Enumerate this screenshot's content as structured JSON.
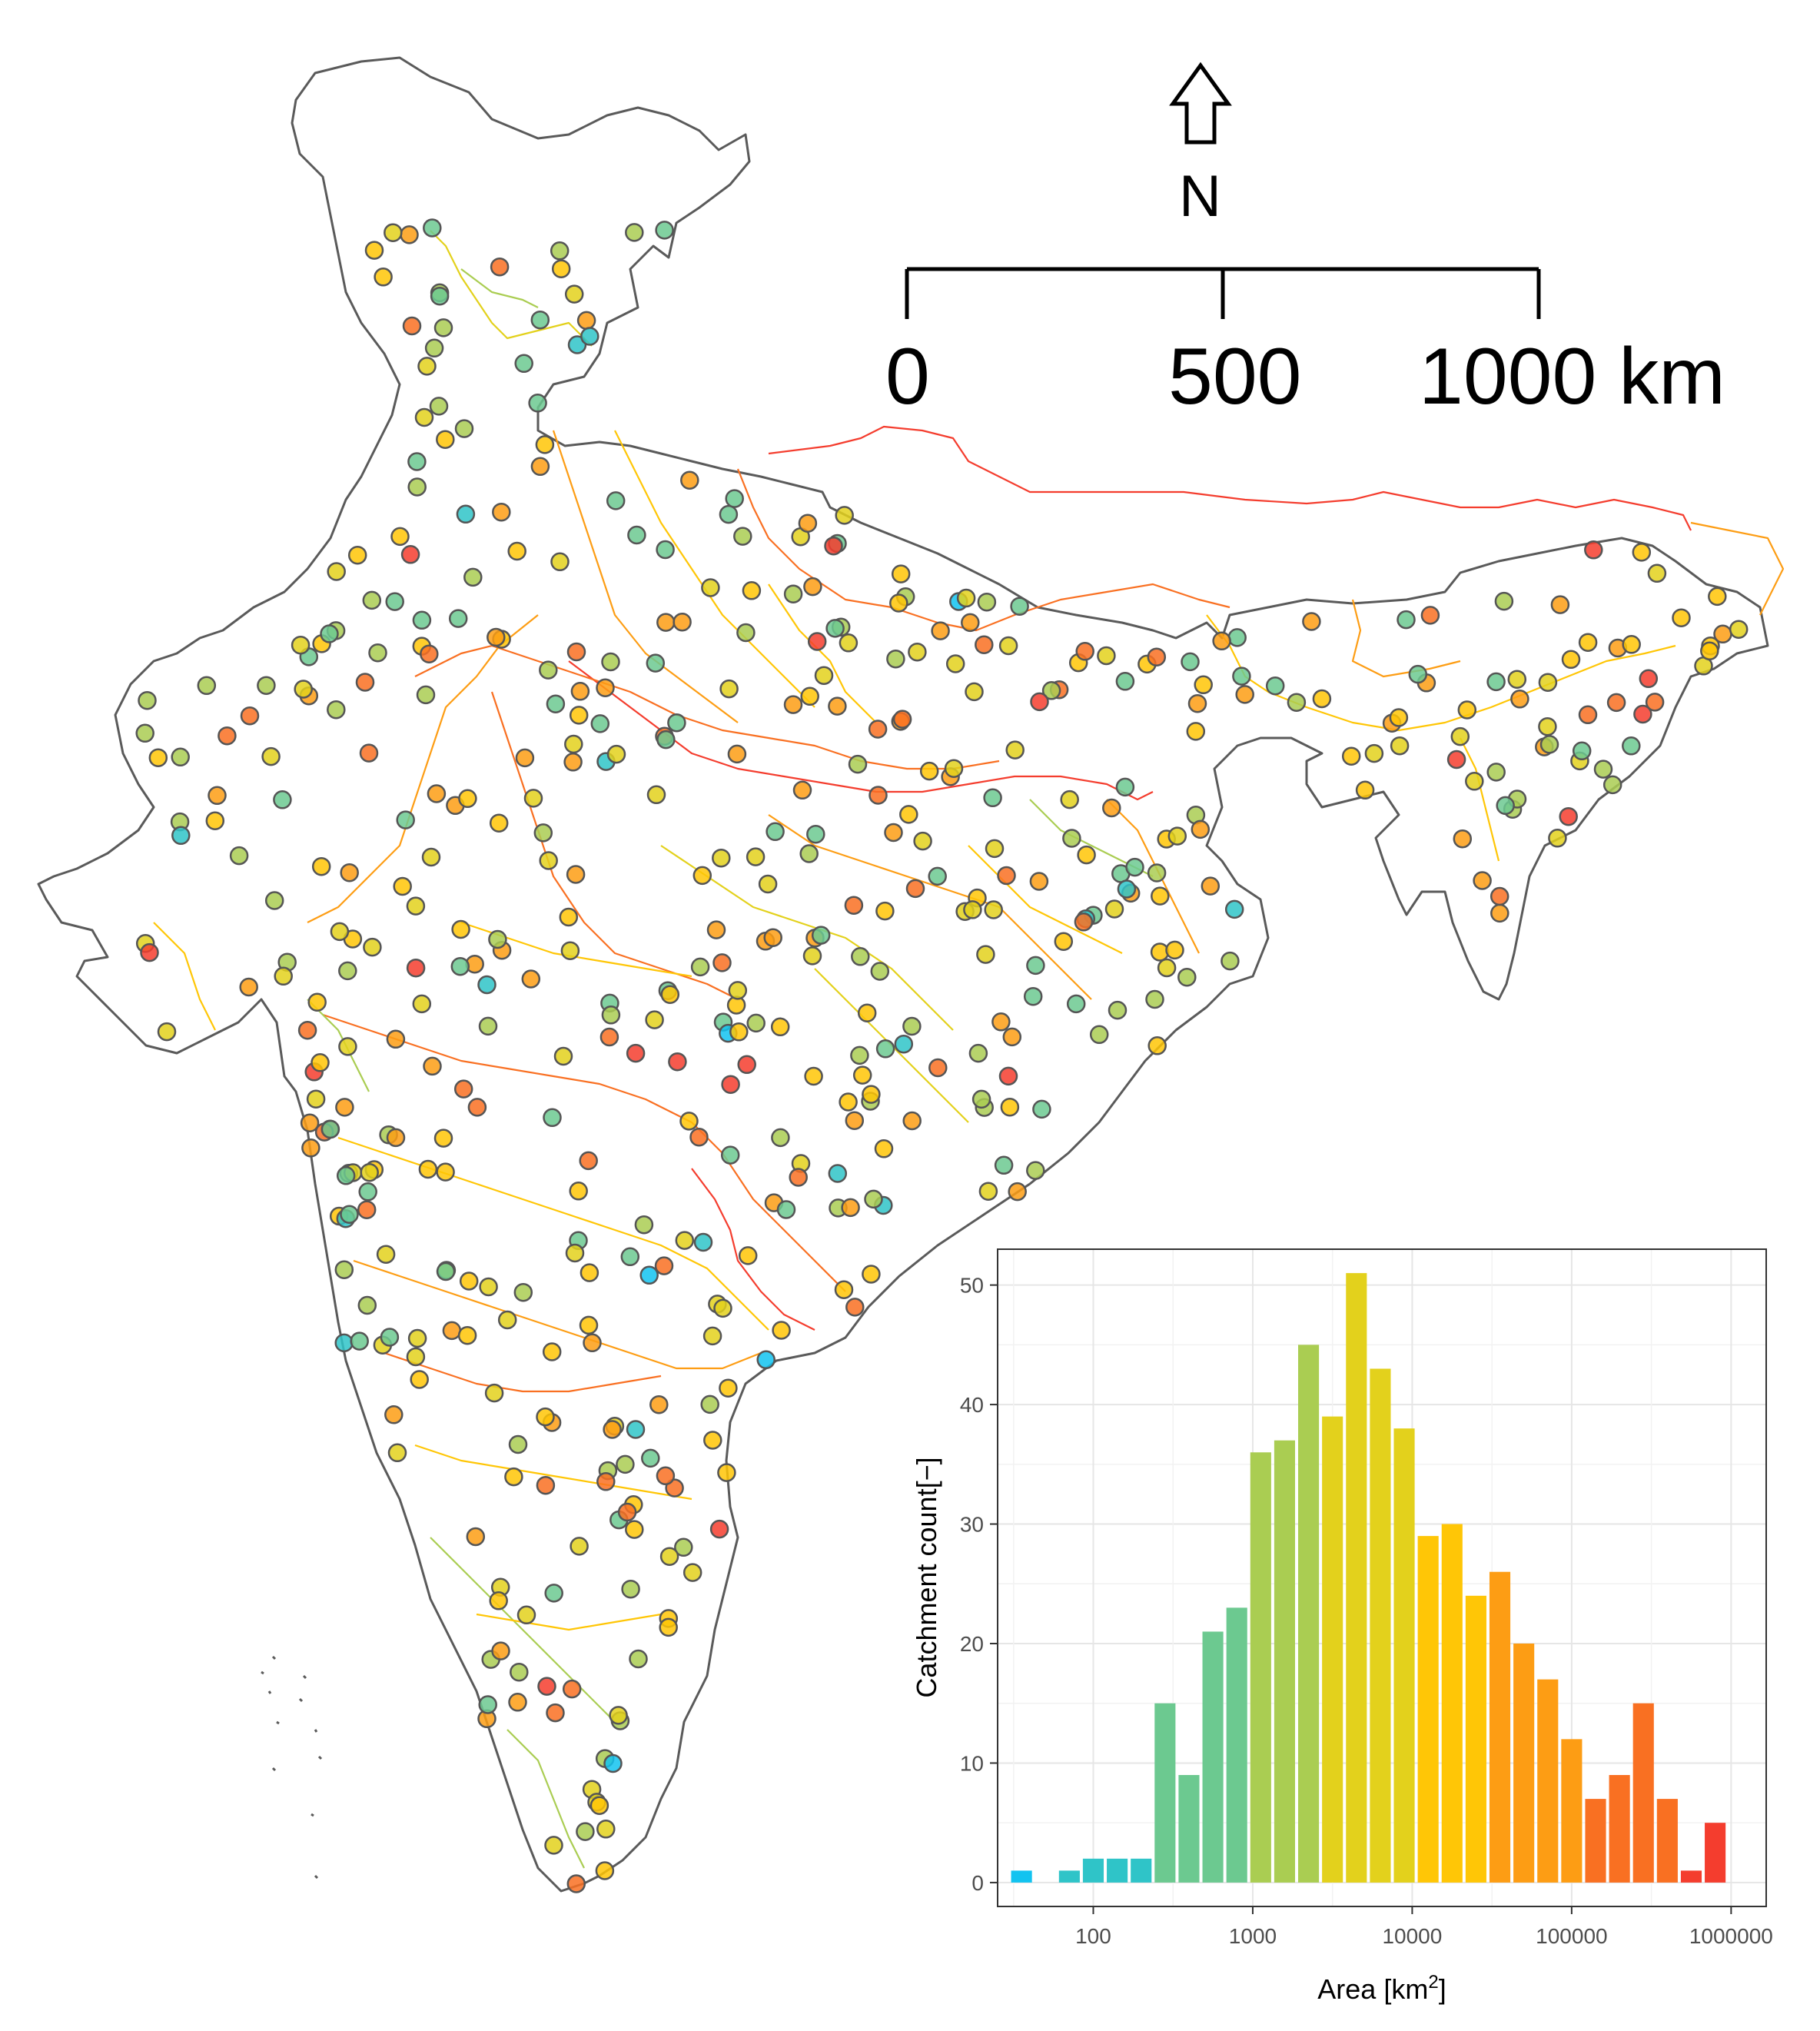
{
  "north_arrow": {
    "label": "N"
  },
  "scale_bar": {
    "labels": [
      "0",
      "500",
      "1000 km"
    ],
    "ticks_km": [
      0,
      500,
      1000
    ]
  },
  "colors": {
    "outline": "#5a5a5a",
    "scale": [
      "#12c3f0",
      "#2fc4c8",
      "#6cc990",
      "#aacd52",
      "#e3d11c",
      "#ffc606",
      "#fd9d14",
      "#f97022",
      "#f43d2e"
    ]
  },
  "map_points_note_free": true,
  "chart_data": {
    "type": "bar",
    "xlabel": "Area [km",
    "xlabel_sup": "2",
    "xlabel_tail": "]",
    "ylabel": "Catchment count[−]",
    "x_scale": "log10",
    "xlim_log10": [
      1.4,
      6.22
    ],
    "ylim": [
      -2,
      53
    ],
    "grid": true,
    "x_ticks": [
      "100",
      "1000",
      "10000",
      "100000",
      "1000000"
    ],
    "x_tick_values": [
      100,
      1000,
      10000,
      100000,
      1000000
    ],
    "y_ticks": [
      "0",
      "10",
      "20",
      "30",
      "40",
      "50"
    ],
    "y_tick_values": [
      0,
      10,
      20,
      30,
      40,
      50
    ],
    "bins_log10": [
      1.55,
      1.85,
      2.0,
      2.15,
      2.3,
      2.45,
      2.6,
      2.75,
      2.9,
      3.05,
      3.2,
      3.35,
      3.5,
      3.65,
      3.8,
      3.95,
      4.1,
      4.25,
      4.4,
      4.55,
      4.7,
      4.85,
      5.0,
      5.15,
      5.3,
      5.45,
      5.6,
      5.75,
      5.9
    ],
    "values": [
      1,
      1,
      2,
      2,
      2,
      15,
      9,
      21,
      23,
      36,
      37,
      45,
      39,
      51,
      43,
      38,
      29,
      30,
      24,
      26,
      20,
      17,
      12,
      7,
      9,
      15,
      7,
      1,
      5
    ]
  }
}
